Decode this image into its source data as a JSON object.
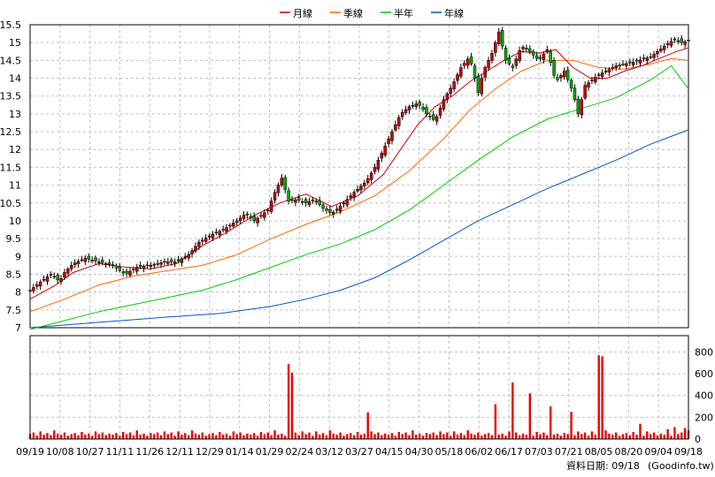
{
  "chart_data": [
    {
      "type": "candlestick",
      "legend_position": "top-center",
      "grid": true,
      "series": [
        {
          "name": "月線",
          "color": "#cc0000"
        },
        {
          "name": "季線",
          "color": "#ff6600"
        },
        {
          "name": "半年",
          "color": "#00cc00"
        },
        {
          "name": "年線",
          "color": "#0055cc"
        }
      ],
      "up_color": "#cc0000",
      "down_color": "#00aa00",
      "ylim": [
        7,
        15.5
      ],
      "yticks": [
        "15.5",
        "15",
        "14.5",
        "14",
        "13.5",
        "13",
        "12.5",
        "12",
        "11.5",
        "11",
        "10.5",
        "10",
        "9.5",
        "9",
        "8.5",
        "8",
        "7.5",
        "7"
      ],
      "price_points": [
        [
          0,
          8.05
        ],
        [
          5,
          8.25
        ],
        [
          12,
          8.5
        ],
        [
          17,
          8.3
        ],
        [
          20,
          8.55
        ],
        [
          25,
          8.8
        ],
        [
          32,
          8.95
        ],
        [
          40,
          8.85
        ],
        [
          48,
          8.75
        ],
        [
          55,
          8.5
        ],
        [
          62,
          8.7
        ],
        [
          70,
          8.75
        ],
        [
          78,
          8.85
        ],
        [
          85,
          8.85
        ],
        [
          92,
          9.05
        ],
        [
          98,
          9.4
        ],
        [
          105,
          9.6
        ],
        [
          112,
          9.75
        ],
        [
          120,
          10.0
        ],
        [
          125,
          10.2
        ],
        [
          130,
          10.0
        ],
        [
          138,
          10.3
        ],
        [
          142,
          10.8
        ],
        [
          146,
          11.2
        ],
        [
          150,
          10.55
        ],
        [
          155,
          10.6
        ],
        [
          160,
          10.5
        ],
        [
          165,
          10.6
        ],
        [
          170,
          10.35
        ],
        [
          175,
          10.2
        ],
        [
          182,
          10.5
        ],
        [
          188,
          10.8
        ],
        [
          195,
          11.1
        ],
        [
          200,
          11.5
        ],
        [
          205,
          12.0
        ],
        [
          210,
          12.5
        ],
        [
          215,
          13.0
        ],
        [
          220,
          13.2
        ],
        [
          225,
          13.3
        ],
        [
          230,
          13.0
        ],
        [
          235,
          12.8
        ],
        [
          240,
          13.4
        ],
        [
          245,
          13.8
        ],
        [
          250,
          14.3
        ],
        [
          255,
          14.6
        ],
        [
          260,
          13.6
        ],
        [
          263,
          14.2
        ],
        [
          268,
          14.7
        ],
        [
          272,
          15.3
        ],
        [
          276,
          14.5
        ],
        [
          280,
          14.3
        ],
        [
          285,
          14.9
        ],
        [
          290,
          14.75
        ],
        [
          295,
          14.5
        ],
        [
          300,
          14.8
        ],
        [
          305,
          13.9
        ],
        [
          310,
          14.2
        ],
        [
          315,
          13.6
        ],
        [
          318,
          13.0
        ],
        [
          322,
          13.8
        ],
        [
          330,
          14.1
        ],
        [
          340,
          14.35
        ],
        [
          350,
          14.45
        ],
        [
          360,
          14.6
        ],
        [
          368,
          14.9
        ],
        [
          374,
          15.1
        ],
        [
          378,
          15.0
        ],
        [
          382,
          15.05
        ]
      ],
      "ma_month": [
        [
          0,
          7.8
        ],
        [
          15,
          8.2
        ],
        [
          25,
          8.55
        ],
        [
          40,
          8.8
        ],
        [
          55,
          8.7
        ],
        [
          70,
          8.65
        ],
        [
          85,
          8.8
        ],
        [
          100,
          9.3
        ],
        [
          115,
          9.7
        ],
        [
          130,
          10.15
        ],
        [
          145,
          10.5
        ],
        [
          160,
          10.75
        ],
        [
          175,
          10.4
        ],
        [
          190,
          10.7
        ],
        [
          205,
          11.3
        ],
        [
          215,
          12.0
        ],
        [
          225,
          12.7
        ],
        [
          235,
          13.2
        ],
        [
          245,
          13.5
        ],
        [
          255,
          13.9
        ],
        [
          265,
          14.2
        ],
        [
          275,
          14.5
        ],
        [
          285,
          14.75
        ],
        [
          295,
          14.7
        ],
        [
          305,
          14.8
        ],
        [
          315,
          14.3
        ],
        [
          325,
          14.0
        ],
        [
          335,
          14.0
        ],
        [
          345,
          14.2
        ],
        [
          355,
          14.35
        ],
        [
          365,
          14.55
        ],
        [
          375,
          14.75
        ],
        [
          382,
          14.85
        ]
      ],
      "ma_quarter": [
        [
          0,
          7.45
        ],
        [
          20,
          7.8
        ],
        [
          40,
          8.2
        ],
        [
          60,
          8.45
        ],
        [
          80,
          8.6
        ],
        [
          100,
          8.75
        ],
        [
          120,
          9.05
        ],
        [
          140,
          9.5
        ],
        [
          160,
          9.9
        ],
        [
          180,
          10.25
        ],
        [
          200,
          10.7
        ],
        [
          220,
          11.4
        ],
        [
          240,
          12.3
        ],
        [
          255,
          13.1
        ],
        [
          270,
          13.7
        ],
        [
          285,
          14.2
        ],
        [
          300,
          14.5
        ],
        [
          315,
          14.5
        ],
        [
          330,
          14.3
        ],
        [
          345,
          14.25
        ],
        [
          360,
          14.4
        ],
        [
          372,
          14.55
        ],
        [
          382,
          14.5
        ]
      ],
      "ma_half": [
        [
          0,
          6.95
        ],
        [
          20,
          7.2
        ],
        [
          40,
          7.45
        ],
        [
          60,
          7.65
        ],
        [
          80,
          7.85
        ],
        [
          100,
          8.05
        ],
        [
          120,
          8.35
        ],
        [
          140,
          8.7
        ],
        [
          160,
          9.05
        ],
        [
          180,
          9.35
        ],
        [
          200,
          9.75
        ],
        [
          220,
          10.3
        ],
        [
          240,
          11.0
        ],
        [
          260,
          11.7
        ],
        [
          280,
          12.35
        ],
        [
          300,
          12.85
        ],
        [
          320,
          13.15
        ],
        [
          340,
          13.45
        ],
        [
          360,
          13.95
        ],
        [
          372,
          14.35
        ],
        [
          382,
          13.7
        ]
      ],
      "ma_year": [
        [
          0,
          7.0
        ],
        [
          40,
          7.15
        ],
        [
          80,
          7.3
        ],
        [
          110,
          7.4
        ],
        [
          140,
          7.6
        ],
        [
          160,
          7.8
        ],
        [
          180,
          8.05
        ],
        [
          200,
          8.4
        ],
        [
          220,
          8.9
        ],
        [
          240,
          9.45
        ],
        [
          260,
          10.0
        ],
        [
          280,
          10.45
        ],
        [
          300,
          10.9
        ],
        [
          320,
          11.3
        ],
        [
          340,
          11.7
        ],
        [
          360,
          12.15
        ],
        [
          382,
          12.55
        ]
      ]
    },
    {
      "type": "bar",
      "ylim": [
        0,
        950
      ],
      "yticks": [
        "800",
        "600",
        "400",
        "200",
        "0"
      ],
      "color": "#ee0000",
      "xlabels": [
        "09/19",
        "10/08",
        "10/27",
        "11/11",
        "11/26",
        "12/11",
        "12/29",
        "01/14",
        "01/29",
        "02/24",
        "03/12",
        "03/27",
        "04/15",
        "04/30",
        "05/18",
        "06/02",
        "06/17",
        "07/03",
        "07/21",
        "08/05",
        "08/20",
        "09/04",
        "09/18"
      ],
      "spikes": [
        [
          150,
          690
        ],
        [
          152,
          610
        ],
        [
          197,
          245
        ],
        [
          270,
          320
        ],
        [
          280,
          520
        ],
        [
          290,
          420
        ],
        [
          303,
          300
        ],
        [
          315,
          250
        ],
        [
          330,
          770
        ],
        [
          332,
          760
        ],
        [
          355,
          140
        ],
        [
          370,
          90
        ],
        [
          375,
          110
        ],
        [
          380,
          100
        ]
      ],
      "base_volumes": [
        45,
        60,
        30,
        70,
        40,
        55,
        35,
        80,
        50,
        40,
        60,
        30,
        45,
        55,
        35,
        65,
        40,
        50,
        30,
        70,
        45,
        60,
        35,
        50,
        40,
        55,
        30,
        65,
        45,
        60,
        35,
        80,
        40,
        50,
        30,
        55,
        45,
        60,
        35,
        70
      ]
    }
  ],
  "footer": {
    "date_label": "資料日期: 09/18",
    "source": "(Goodinfo.tw)"
  }
}
